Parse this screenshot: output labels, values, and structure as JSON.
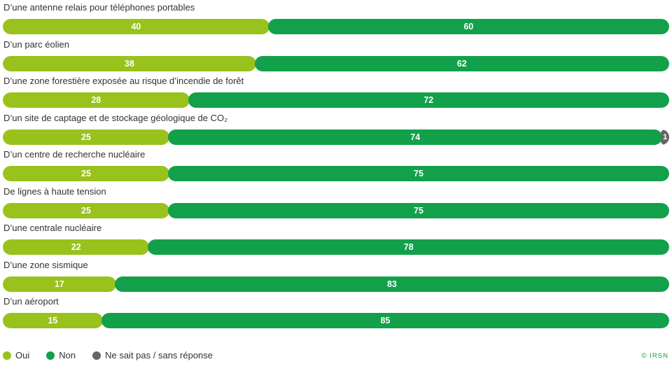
{
  "colors": {
    "oui": "#99c21c",
    "non": "#13a04a",
    "nsp": "#666666"
  },
  "credit": "© IRSN",
  "chart_data": {
    "type": "bar",
    "orientation": "horizontal",
    "stacked": true,
    "stack_total": 100,
    "xlim": [
      0,
      100
    ],
    "categories": [
      "D’une antenne relais pour téléphones portables",
      "D’un parc éolien",
      "D’une zone forestière exposée au risque d’incendie de forêt",
      "D’un site de captage et de stockage géologique de CO₂",
      "D’un centre de recherche nucléaire",
      "De lignes à haute tension",
      "D’une centrale nucléaire",
      "D’une zone sismique",
      "D’un aéroport"
    ],
    "series": [
      {
        "name": "Oui",
        "color": "#99c21c",
        "values": [
          40,
          38,
          28,
          25,
          25,
          25,
          22,
          17,
          15
        ]
      },
      {
        "name": "Non",
        "color": "#13a04a",
        "values": [
          60,
          62,
          72,
          74,
          75,
          75,
          78,
          83,
          85
        ]
      },
      {
        "name": "Ne sait pas / sans réponse",
        "color": "#666666",
        "values": [
          0,
          0,
          0,
          1,
          0,
          0,
          0,
          0,
          0
        ]
      }
    ],
    "legend_position": "bottom-left",
    "grid": false
  }
}
